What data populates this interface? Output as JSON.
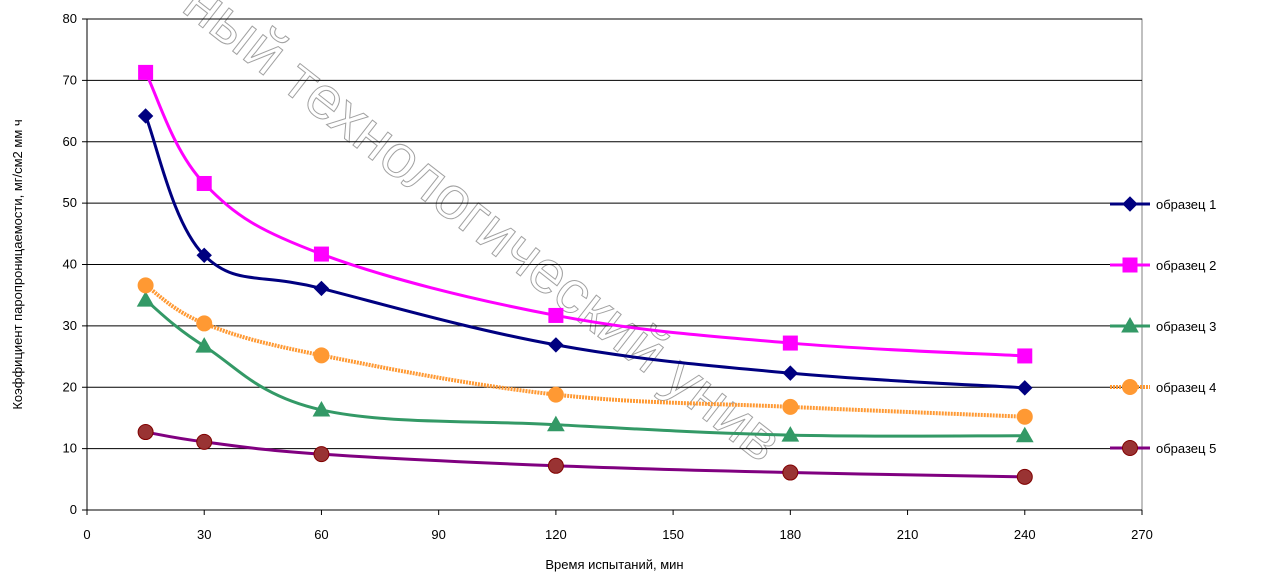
{
  "chart_data": {
    "type": "line",
    "title": "",
    "xlabel": "Время испытаний, мин",
    "ylabel": "Коэффициент паропроницаемости, мг/см2 мм ч",
    "xlim": [
      0,
      270
    ],
    "ylim": [
      0,
      80
    ],
    "xticks": [
      0,
      30,
      60,
      90,
      120,
      150,
      180,
      210,
      240,
      270
    ],
    "yticks": [
      0,
      10,
      20,
      30,
      40,
      50,
      60,
      70,
      80
    ],
    "grid": "horizontal",
    "legend_position": "right",
    "x": [
      15,
      30,
      60,
      120,
      180,
      240
    ],
    "series": [
      {
        "name": "образец 1",
        "color": "#000080",
        "marker": "diamond",
        "values": [
          64.2,
          41.5,
          36.1,
          26.9,
          22.3,
          19.9
        ]
      },
      {
        "name": "образец 2",
        "color": "#FF00FF",
        "marker": "square",
        "values": [
          71.3,
          53.2,
          41.7,
          31.7,
          27.2,
          25.1
        ]
      },
      {
        "name": "образец 3",
        "color": "#339966",
        "marker": "triangle",
        "values": [
          34.2,
          26.7,
          16.3,
          13.9,
          12.2,
          12.1
        ]
      },
      {
        "name": "образец 4",
        "color": "#FF9933",
        "marker": "circle",
        "values": [
          36.6,
          30.4,
          25.2,
          18.8,
          16.8,
          15.2
        ]
      },
      {
        "name": "образец 5",
        "color": "#800080",
        "marker": "circle-brown",
        "values": [
          12.7,
          11.1,
          9.1,
          7.2,
          6.1,
          5.4
        ]
      }
    ]
  },
  "watermark": "ный технологический унив"
}
